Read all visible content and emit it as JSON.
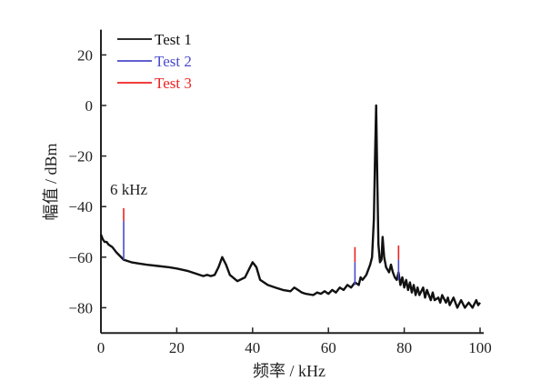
{
  "chart_data": {
    "type": "line",
    "title": "",
    "xlabel": "频率 / kHz",
    "ylabel": "幅值 / dBm",
    "xlim": [
      0,
      100
    ],
    "ylim": [
      -90,
      30
    ],
    "xticks": [
      0,
      20,
      40,
      60,
      80,
      100
    ],
    "yticks": [
      20,
      0,
      -20,
      -40,
      -60,
      -80
    ],
    "grid": false,
    "legend_position": "top-left",
    "annotations": [
      {
        "text": "6 kHz",
        "x": 6,
        "y": -37
      }
    ],
    "series": [
      {
        "name": "Test 1",
        "color": "#111111",
        "x": [
          0,
          0.5,
          1,
          1.5,
          2,
          3,
          4,
          5,
          6,
          8,
          10,
          12,
          15,
          18,
          20,
          23,
          25,
          27,
          28,
          29,
          30,
          31,
          32,
          33,
          34,
          36,
          38,
          39,
          40,
          41,
          42,
          44,
          46,
          48,
          50,
          51,
          52,
          53,
          54,
          56,
          57,
          58,
          59,
          60,
          61,
          62,
          63,
          64,
          65,
          66,
          67,
          68,
          68.5,
          69,
          70,
          71,
          71.5,
          72,
          72.3,
          72.6,
          72.9,
          73.2,
          73.6,
          74,
          74.3,
          74.7,
          75.2,
          76,
          76.5,
          77,
          77.5,
          78,
          78.5,
          79,
          79.5,
          80,
          80.5,
          81,
          81.5,
          82,
          82.5,
          83,
          83.5,
          84,
          85,
          85.5,
          86,
          87,
          87.5,
          88,
          89,
          89.5,
          90,
          91,
          91.5,
          92,
          93,
          94,
          95,
          96,
          97,
          98,
          99,
          99.5,
          100
        ],
        "y": [
          -51,
          -53,
          -54,
          -54,
          -55,
          -56,
          -58,
          -59.5,
          -61,
          -62,
          -62.5,
          -63,
          -63.5,
          -64,
          -64.5,
          -65.5,
          -66.5,
          -67.5,
          -67,
          -67.5,
          -67,
          -64,
          -60,
          -63,
          -67,
          -69.5,
          -68,
          -65,
          -62,
          -64,
          -69,
          -71,
          -72,
          -73,
          -73.5,
          -72,
          -73,
          -74,
          -74.5,
          -75,
          -74,
          -74.5,
          -73.5,
          -74.5,
          -73,
          -74,
          -72,
          -73,
          -71,
          -72,
          -70,
          -71,
          -68,
          -69,
          -67,
          -63,
          -60,
          -45,
          -20,
          0,
          -30,
          -55,
          -62,
          -61,
          -52,
          -60,
          -64,
          -66,
          -63,
          -66,
          -68,
          -69,
          -66,
          -71,
          -68,
          -72,
          -69,
          -73,
          -70,
          -74,
          -71,
          -75,
          -72,
          -75,
          -72,
          -76,
          -73,
          -77,
          -74,
          -77,
          -76,
          -78,
          -75,
          -78,
          -76,
          -79,
          -76,
          -80,
          -77,
          -80,
          -78,
          -80,
          -77,
          -79,
          -78
        ]
      },
      {
        "name": "Test 2",
        "color": "#4a4acc",
        "spikes": [
          {
            "x": 6,
            "from": -61,
            "to": -45.7
          },
          {
            "x": 67,
            "from": -71,
            "to": -62
          },
          {
            "x": 78.5,
            "from": -69,
            "to": -61
          }
        ]
      },
      {
        "name": "Test 3",
        "color": "#ee2222",
        "spikes": [
          {
            "x": 6,
            "from": -45.7,
            "to": -40.6
          },
          {
            "x": 67,
            "from": -62,
            "to": -56
          },
          {
            "x": 78.5,
            "from": -61,
            "to": -55.4
          }
        ]
      }
    ]
  }
}
